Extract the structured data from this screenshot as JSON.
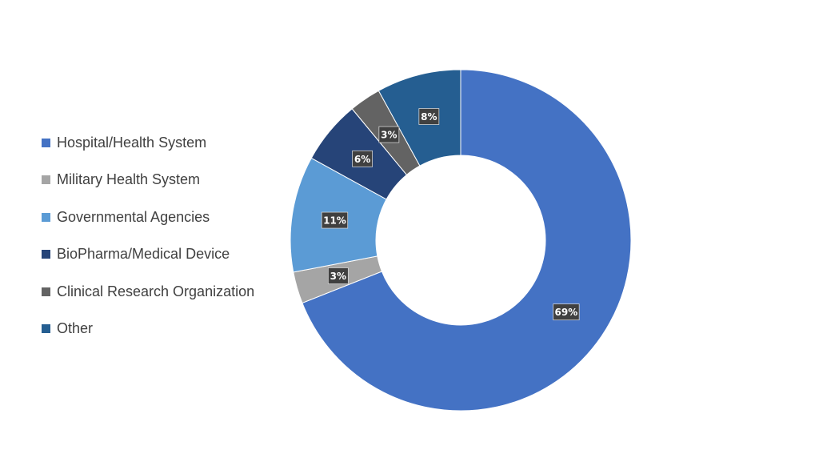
{
  "chart_data": {
    "type": "pie",
    "donut": true,
    "legend_position": "left",
    "categories": [
      "Hospital/Health System",
      "Military Health System",
      "Governmental Agencies",
      "BioPharma/Medical Device",
      "Clinical Research Organization",
      "Other"
    ],
    "values": [
      69,
      3,
      11,
      6,
      3,
      8
    ],
    "labels": [
      "69%",
      "3%",
      "11%",
      "6%",
      "3%",
      "8%"
    ],
    "colors": [
      "#4472C4",
      "#A5A5A5",
      "#5B9BD5",
      "#264478",
      "#636363",
      "#255E91"
    ]
  }
}
